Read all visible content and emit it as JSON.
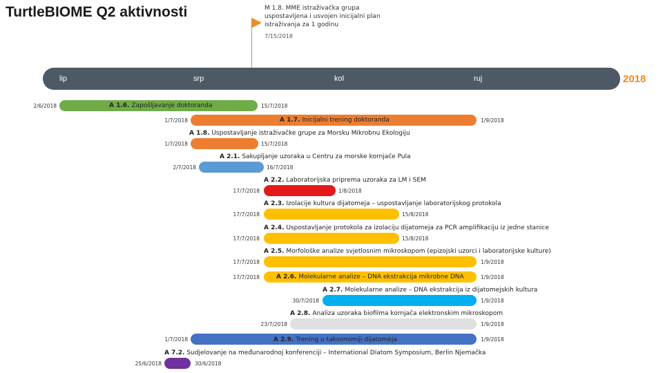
{
  "title": "TurtleBIOME Q2 aktivnosti",
  "year": "2018",
  "months": [
    "lip",
    "srp",
    "kol",
    "ruj"
  ],
  "milestone": {
    "text": "M 1.8. MME istraživačka grupa uspostavljena i usvojen inicijalni plan istraživanja za 1 godinu",
    "date": "7/15/2018",
    "color": "#f08a24"
  },
  "colors": {
    "green": "#6fac47",
    "orange": "#ed7d31",
    "blue": "#5b9bd5",
    "red": "#e3191c",
    "yellow": "#ffc000",
    "cyan": "#00b0f0",
    "gray": "#e0e0e0",
    "navy": "#4472c4",
    "purple": "#7030a0"
  },
  "tasks": [
    {
      "code": "A 1.6.",
      "name": "Zapošljavanje doktoranda",
      "start": "2/6/2018",
      "end": "15/7/2018"
    },
    {
      "code": "A 1.7.",
      "name": "Inicijalni trening doktoranda",
      "start": "1/7/2018",
      "end": "1/9/2018"
    },
    {
      "code": "A 1.8.",
      "name": "Uspostavljanje istraživačke grupe za Morsku Mikrobnu Ekologiju",
      "start": "1/7/2018",
      "end": "15/7/2018"
    },
    {
      "code": "A 2.1.",
      "name": "Sakupljanje uzoraka u Centru za morske kornjače Pula",
      "start": "2/7/2018",
      "end": "16/7/2018"
    },
    {
      "code": "A 2.2.",
      "name": "Laboratorijska priprema uzoraka za LM i SEM",
      "start": "17/7/2018",
      "end": "1/8/2018"
    },
    {
      "code": "A 2.3.",
      "name": "Izolacije kultura dijatomeja – uspostavljanje laboratorijskog protokola",
      "start": "17/7/2018",
      "end": "15/8/2018"
    },
    {
      "code": "A 2.4.",
      "name": "Uspostavljanje protokola za izolaciju dijatomeja za PCR amplifikaciju iz jedne stanice",
      "start": "17/7/2018",
      "end": "15/8/2018"
    },
    {
      "code": "A 2.5.",
      "name": "Morfološke analize svjetlosnim mikroskopom (epizojski uzorci i laboratorijske kulture)",
      "start": "17/7/2018",
      "end": "1/9/2018"
    },
    {
      "code": "A 2.6.",
      "name": "Molekularne analize – DNA ekstrakcija mikrobne DNA",
      "start": "17/7/2018",
      "end": "1/9/2018"
    },
    {
      "code": "A 2.7.",
      "name": "Molekularne analize – DNA ekstrakcija iz dijatomejskih kultura",
      "start": "30/7/2018",
      "end": "1/9/2018"
    },
    {
      "code": "A 2.8.",
      "name": "Analiza uzoraka biofilma kornjača elektronskim mikroskopom",
      "start": "23/7/2018",
      "end": "1/9/2018"
    },
    {
      "code": "A 2.9.",
      "name": "Trening u taksonomiji dijatomeja",
      "start": "1/7/2018",
      "end": "1/9/2018"
    },
    {
      "code": "A 7.2.",
      "name": "Sudjelovanje na međunarodnoj konferenciji – International Diatom Symposium, Berlin Njemačka",
      "start": "25/6/2018",
      "end": "30/6/2018"
    }
  ]
}
